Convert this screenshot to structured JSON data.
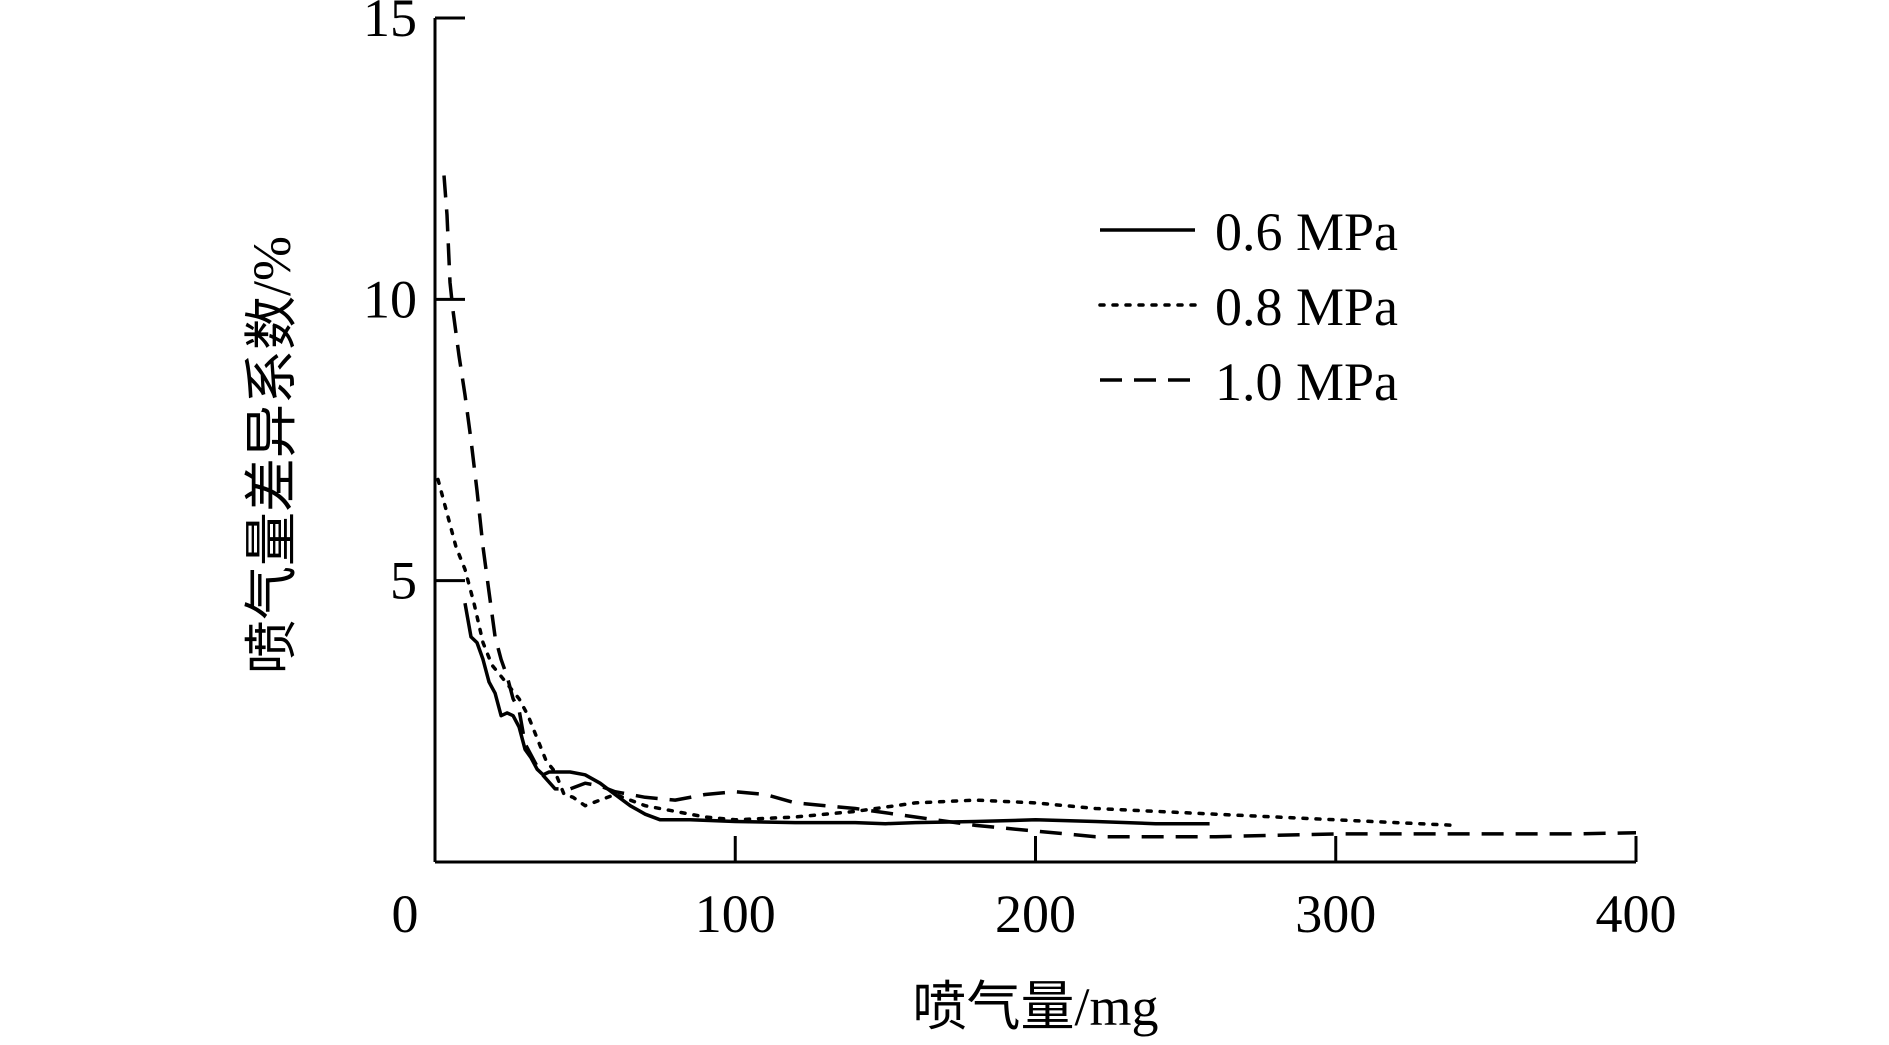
{
  "chart_data": {
    "type": "line",
    "title": "",
    "xlabel": "喷气量/mg",
    "ylabel": "喷气量差异系数/%",
    "xlim": [
      0,
      400
    ],
    "ylim": [
      0,
      15
    ],
    "x_ticks": [
      "0",
      "100",
      "200",
      "300",
      "400"
    ],
    "y_ticks": [
      "5",
      "10",
      "15"
    ],
    "grid": false,
    "legend_position": "top-right",
    "series": [
      {
        "name": "0.6 MPa",
        "style": "solid",
        "color": "#000000",
        "x": [
          10,
          12,
          14,
          16,
          18,
          20,
          22,
          24,
          26,
          28,
          30,
          32,
          34,
          36,
          38,
          40,
          45,
          50,
          55,
          60,
          65,
          70,
          75,
          85,
          100,
          120,
          140,
          150,
          160,
          180,
          200,
          220,
          240,
          258
        ],
        "y": [
          4.6,
          4.0,
          3.9,
          3.6,
          3.2,
          3.0,
          2.6,
          2.65,
          2.6,
          2.4,
          2.0,
          1.85,
          1.65,
          1.55,
          1.6,
          1.6,
          1.6,
          1.55,
          1.4,
          1.2,
          1.0,
          0.85,
          0.75,
          0.75,
          0.72,
          0.7,
          0.7,
          0.68,
          0.7,
          0.72,
          0.75,
          0.72,
          0.68,
          0.68
        ]
      },
      {
        "name": "0.8 MPa",
        "style": "dotted",
        "color": "#000000",
        "x": [
          1,
          4,
          7,
          10,
          13,
          16,
          19,
          22,
          25,
          28,
          31,
          34,
          37,
          40,
          43,
          46,
          50,
          55,
          60,
          70,
          80,
          90,
          100,
          120,
          140,
          160,
          180,
          200,
          220,
          260,
          300,
          340
        ],
        "y": [
          6.8,
          6.2,
          5.6,
          5.2,
          4.6,
          3.9,
          3.5,
          3.3,
          3.1,
          2.9,
          2.6,
          2.2,
          1.8,
          1.6,
          1.2,
          1.15,
          1.0,
          1.1,
          1.2,
          1.0,
          0.9,
          0.8,
          0.75,
          0.8,
          0.9,
          1.05,
          1.1,
          1.05,
          0.95,
          0.85,
          0.75,
          0.65
        ]
      },
      {
        "name": "1.0 MPa",
        "style": "dashed",
        "color": "#000000",
        "x": [
          3,
          4,
          5,
          6,
          8,
          10,
          12,
          14,
          16,
          18,
          20,
          22,
          24,
          26,
          28,
          30,
          35,
          40,
          45,
          50,
          55,
          60,
          70,
          80,
          90,
          100,
          110,
          120,
          140,
          160,
          180,
          200,
          220,
          260,
          300,
          340,
          380,
          400
        ],
        "y": [
          12.2,
          11.5,
          10.3,
          9.8,
          9.0,
          8.3,
          7.5,
          6.6,
          5.6,
          4.8,
          4.0,
          3.6,
          3.3,
          2.9,
          2.7,
          2.1,
          1.6,
          1.3,
          1.3,
          1.4,
          1.35,
          1.25,
          1.15,
          1.1,
          1.2,
          1.25,
          1.2,
          1.05,
          0.95,
          0.8,
          0.65,
          0.55,
          0.45,
          0.45,
          0.5,
          0.5,
          0.5,
          0.52
        ]
      }
    ]
  }
}
